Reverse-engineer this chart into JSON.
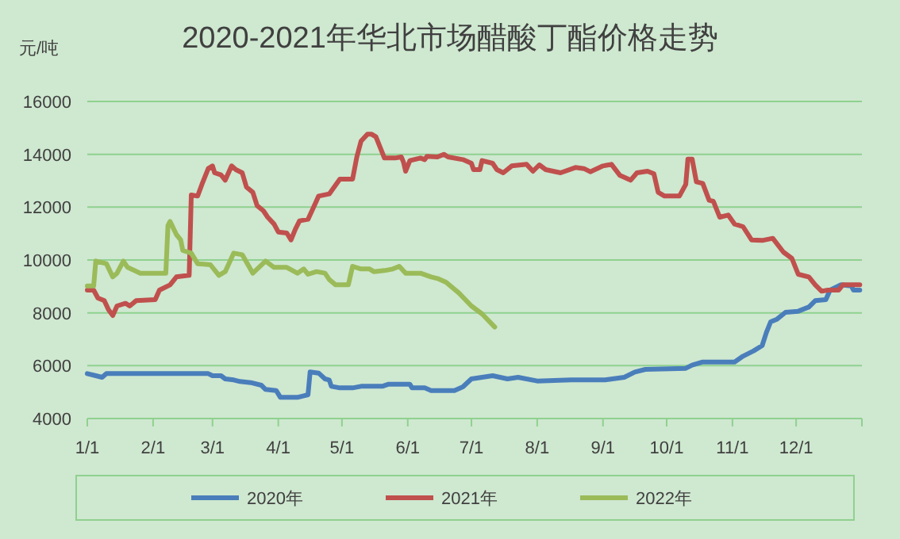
{
  "chart_data": {
    "type": "line",
    "title": "2020-2021年华北市场醋酸丁酯价格走势",
    "ylabel": "元/吨",
    "xlim": [
      "--01-01",
      "--12-31"
    ],
    "xticks": [
      {
        "value": "--01-01",
        "label": "1/1"
      },
      {
        "value": "--02-01",
        "label": "2/1"
      },
      {
        "value": "--03-01",
        "label": "3/1"
      },
      {
        "value": "--04-01",
        "label": "4/1"
      },
      {
        "value": "--05-01",
        "label": "5/1"
      },
      {
        "value": "--06-01",
        "label": "6/1"
      },
      {
        "value": "--07-01",
        "label": "7/1"
      },
      {
        "value": "--08-01",
        "label": "8/1"
      },
      {
        "value": "--09-01",
        "label": "9/1"
      },
      {
        "value": "--10-01",
        "label": "10/1"
      },
      {
        "value": "--11-01",
        "label": "11/1"
      },
      {
        "value": "--12-01",
        "label": "12/1"
      }
    ],
    "ylim": [
      4000,
      16000
    ],
    "yticks": [
      4000,
      6000,
      8000,
      10000,
      12000,
      14000,
      16000
    ],
    "grid": "y",
    "legend": "bottom",
    "marker": "none",
    "line_style": "solid",
    "series": [
      {
        "name": "2020年",
        "color": "#4a7ebb",
        "x": [
          "--01-01",
          "--01-05",
          "--01-08",
          "--01-10",
          "--02-27",
          "--03-01",
          "--03-05",
          "--03-07",
          "--03-11",
          "--03-14",
          "--03-19",
          "--03-24",
          "--03-26",
          "--03-31",
          "--04-02",
          "--04-10",
          "--04-13",
          "--04-15",
          "--04-16",
          "--04-20",
          "--04-23",
          "--04-25",
          "--04-26",
          "--04-30",
          "--05-06",
          "--05-10",
          "--05-20",
          "--05-23",
          "--06-02",
          "--06-03",
          "--06-09",
          "--06-12",
          "--06-23",
          "--06-27",
          "--07-01",
          "--07-11",
          "--07-18",
          "--07-23",
          "--08-01",
          "--08-17",
          "--09-02",
          "--09-11",
          "--09-16",
          "--09-21",
          "--10-10",
          "--10-13",
          "--10-18",
          "--11-02",
          "--11-06",
          "--11-11",
          "--11-15",
          "--11-17",
          "--11-19",
          "--11-22",
          "--11-26",
          "--12-02",
          "--12-07",
          "--12-10",
          "--12-15",
          "--12-17",
          "--12-22",
          "--12-27",
          "--12-28",
          "--12-31"
        ],
        "values": [
          5700,
          5620,
          5560,
          5700,
          5700,
          5620,
          5620,
          5500,
          5460,
          5400,
          5360,
          5260,
          5100,
          5060,
          4800,
          4800,
          4860,
          4900,
          5760,
          5720,
          5500,
          5460,
          5220,
          5160,
          5160,
          5220,
          5220,
          5300,
          5300,
          5160,
          5160,
          5060,
          5060,
          5200,
          5500,
          5620,
          5500,
          5560,
          5420,
          5460,
          5460,
          5560,
          5760,
          5860,
          5900,
          6020,
          6140,
          6140,
          6360,
          6560,
          6760,
          7260,
          7660,
          7760,
          8020,
          8060,
          8220,
          8460,
          8500,
          8860,
          9060,
          9020,
          8860,
          8860
        ]
      },
      {
        "name": "2021年",
        "color": "#c0504d",
        "x": [
          "--01-01",
          "--01-04",
          "--01-06",
          "--01-09",
          "--01-11",
          "--01-13",
          "--01-15",
          "--01-19",
          "--01-21",
          "--01-24",
          "--02-02",
          "--02-04",
          "--02-09",
          "--02-12",
          "--02-18",
          "--02-19",
          "--02-22",
          "--02-24",
          "--02-27",
          "--03-01",
          "--03-02",
          "--03-05",
          "--03-07",
          "--03-10",
          "--03-12",
          "--03-15",
          "--03-17",
          "--03-20",
          "--03-22",
          "--03-25",
          "--03-27",
          "--03-30",
          "--04-01",
          "--04-05",
          "--04-07",
          "--04-09",
          "--04-11",
          "--04-15",
          "--04-18",
          "--04-20",
          "--04-25",
          "--04-30",
          "--05-06",
          "--05-08",
          "--05-10",
          "--05-13",
          "--05-15",
          "--05-17",
          "--05-20",
          "--05-21",
          "--05-26",
          "--05-29",
          "--05-30",
          "--05-31",
          "--06-02",
          "--06-07",
          "--06-09",
          "--06-10",
          "--06-15",
          "--06-18",
          "--06-20",
          "--06-27",
          "--07-01",
          "--07-02",
          "--07-05",
          "--07-06",
          "--07-11",
          "--07-13",
          "--07-16",
          "--07-20",
          "--07-27",
          "--07-30",
          "--08-02",
          "--08-05",
          "--08-12",
          "--08-19",
          "--08-23",
          "--08-26",
          "--09-01",
          "--09-05",
          "--09-09",
          "--09-14",
          "--09-17",
          "--09-22",
          "--09-25",
          "--09-27",
          "--09-30",
          "--10-07",
          "--10-10",
          "--10-11",
          "--10-13",
          "--10-15",
          "--10-18",
          "--10-21",
          "--10-23",
          "--10-26",
          "--10-30",
          "--11-02",
          "--11-06",
          "--11-10",
          "--11-15",
          "--11-20",
          "--11-25",
          "--11-29",
          "--12-02",
          "--12-07",
          "--12-10",
          "--12-13",
          "--12-16",
          "--12-21",
          "--12-23",
          "--12-31"
        ],
        "values": [
          8860,
          8860,
          8560,
          8460,
          8120,
          7900,
          8260,
          8360,
          8260,
          8460,
          8500,
          8860,
          9060,
          9360,
          9420,
          12460,
          12420,
          12860,
          13460,
          13560,
          13300,
          13220,
          13020,
          13560,
          13420,
          13300,
          12760,
          12560,
          12060,
          11860,
          11620,
          11360,
          11060,
          11020,
          10760,
          11160,
          11480,
          11540,
          12060,
          12420,
          12500,
          13060,
          13060,
          13900,
          14500,
          14760,
          14760,
          14660,
          14060,
          13860,
          13860,
          13900,
          13700,
          13360,
          13760,
          13860,
          13800,
          13920,
          13900,
          14000,
          13900,
          13800,
          13660,
          13420,
          13420,
          13760,
          13660,
          13420,
          13300,
          13560,
          13620,
          13360,
          13600,
          13420,
          13300,
          13500,
          13460,
          13340,
          13560,
          13620,
          13200,
          13020,
          13300,
          13360,
          13260,
          12560,
          12420,
          12420,
          12860,
          13820,
          13820,
          12960,
          12900,
          12260,
          12220,
          11620,
          11700,
          11360,
          11260,
          10760,
          10740,
          10820,
          10300,
          10060,
          9460,
          9360,
          9060,
          8820,
          8860,
          8860,
          9060,
          9060
        ]
      },
      {
        "name": "2022年",
        "color": "#9bbb59",
        "x": [
          "--01-01",
          "--01-04",
          "--01-05",
          "--01-08",
          "--01-10",
          "--01-13",
          "--01-15",
          "--01-18",
          "--01-20",
          "--01-26",
          "--02-07",
          "--02-08",
          "--02-09",
          "--02-12",
          "--02-14",
          "--02-15",
          "--02-19",
          "--02-22",
          "--02-28",
          "--03-04",
          "--03-07",
          "--03-11",
          "--03-15",
          "--03-20",
          "--03-26",
          "--03-30",
          "--04-05",
          "--04-10",
          "--04-13",
          "--04-15",
          "--04-19",
          "--04-23",
          "--04-25",
          "--04-28",
          "--05-04",
          "--05-06",
          "--05-10",
          "--05-14",
          "--05-16",
          "--05-21",
          "--05-25",
          "--05-28",
          "--05-31",
          "--06-07",
          "--06-12",
          "--06-15",
          "--06-19",
          "--06-25",
          "--07-01",
          "--07-06",
          "--07-12"
        ],
        "values": [
          9020,
          9020,
          9960,
          9900,
          9860,
          9360,
          9500,
          9960,
          9720,
          9500,
          9500,
          11300,
          11460,
          10960,
          10760,
          10360,
          10260,
          9860,
          9820,
          9420,
          9560,
          10260,
          10200,
          9500,
          9960,
          9720,
          9720,
          9500,
          9660,
          9460,
          9560,
          9500,
          9260,
          9060,
          9060,
          9760,
          9660,
          9660,
          9560,
          9600,
          9660,
          9760,
          9500,
          9500,
          9360,
          9300,
          9160,
          8760,
          8260,
          7960,
          7460
        ]
      }
    ]
  }
}
